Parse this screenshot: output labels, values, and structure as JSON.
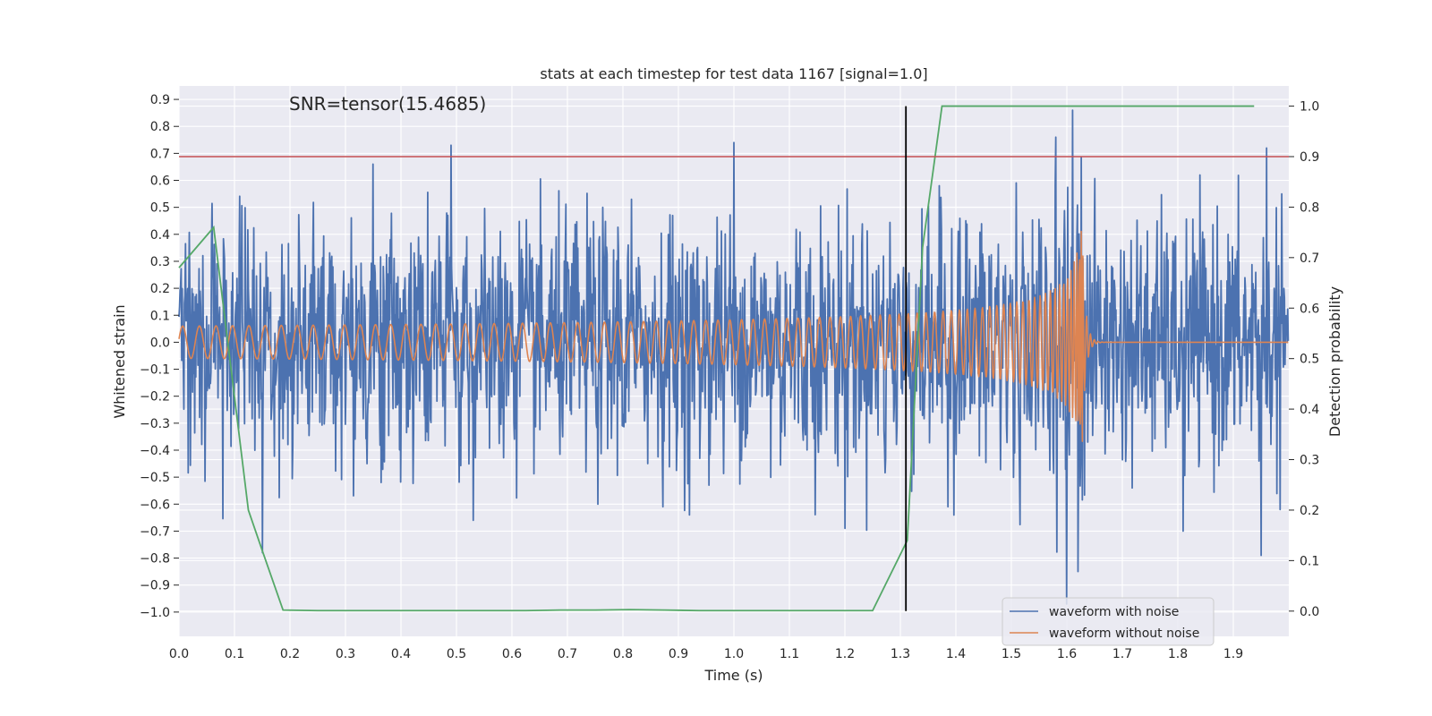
{
  "chart_data": {
    "type": "line",
    "title": "stats at each timestep for test data 1167 [signal=1.0]",
    "xlabel": "Time (s)",
    "ylabel": "Whitened strain",
    "y2label": "Detection probability",
    "annotation": "SNR=tensor(15.4685)",
    "xlim": [
      0.0,
      2.0
    ],
    "ylim": [
      -1.09,
      0.95
    ],
    "y2lim": [
      -0.05,
      1.04
    ],
    "x_ticks": [
      0.0,
      0.1,
      0.2,
      0.3,
      0.4,
      0.5,
      0.6,
      0.7,
      0.8,
      0.9,
      1.0,
      1.1,
      1.2,
      1.3,
      1.4,
      1.5,
      1.6,
      1.7,
      1.8,
      1.9
    ],
    "x_tick_labels": [
      "0.0",
      "0.1",
      "0.2",
      "0.3",
      "0.4",
      "0.5",
      "0.6",
      "0.7",
      "0.8",
      "0.9",
      "1.0",
      "1.1",
      "1.2",
      "1.3",
      "1.4",
      "1.5",
      "1.6",
      "1.7",
      "1.8",
      "1.9"
    ],
    "y_ticks": [
      -1.0,
      -0.9,
      -0.8,
      -0.7,
      -0.6,
      -0.5,
      -0.4,
      -0.3,
      -0.2,
      -0.1,
      0.0,
      0.1,
      0.2,
      0.3,
      0.4,
      0.5,
      0.6,
      0.7,
      0.8,
      0.9
    ],
    "y_tick_labels": [
      "−1.0",
      "−0.9",
      "−0.8",
      "−0.7",
      "−0.6",
      "−0.5",
      "−0.4",
      "−0.3",
      "−0.2",
      "−0.1",
      "0.0",
      "0.1",
      "0.2",
      "0.3",
      "0.4",
      "0.5",
      "0.6",
      "0.7",
      "0.8",
      "0.9"
    ],
    "y2_ticks": [
      0.0,
      0.1,
      0.2,
      0.3,
      0.4,
      0.5,
      0.6,
      0.7,
      0.8,
      0.9,
      1.0
    ],
    "y2_tick_labels": [
      "0.0",
      "0.1",
      "0.2",
      "0.3",
      "0.4",
      "0.5",
      "0.6",
      "0.7",
      "0.8",
      "0.9",
      "1.0"
    ],
    "threshold_probability": 0.9,
    "detection_time": 1.31,
    "merger_time": 1.63,
    "series": [
      {
        "name": "waveform with noise",
        "color": "#4c72b0",
        "axis": "left",
        "noise_std": 0.22,
        "extremes": [
          {
            "x": 0.15,
            "y": -0.78
          },
          {
            "x": 0.49,
            "y": 0.73
          },
          {
            "x": 0.53,
            "y": -0.66
          },
          {
            "x": 1.0,
            "y": 0.74
          },
          {
            "x": 0.92,
            "y": -0.64
          },
          {
            "x": 1.2,
            "y": -0.69
          },
          {
            "x": 1.37,
            "y": 0.58
          },
          {
            "x": 1.58,
            "y": 0.76
          },
          {
            "x": 1.6,
            "y": -0.97
          },
          {
            "x": 1.61,
            "y": 0.86
          },
          {
            "x": 1.62,
            "y": -0.85
          },
          {
            "x": 1.96,
            "y": 0.72
          },
          {
            "x": 1.95,
            "y": -0.79
          },
          {
            "x": 1.81,
            "y": -0.7
          },
          {
            "x": 0.35,
            "y": 0.66
          }
        ]
      },
      {
        "name": "waveform without noise",
        "color": "#dd8452",
        "axis": "left",
        "start_amplitude": 0.06,
        "peak_amplitude": 0.42,
        "start_frequency_hz": 33,
        "chirp_exponent": 0.375
      },
      {
        "name": "detection probability",
        "color": "#55a868",
        "axis": "right",
        "x": [
          0.0,
          0.0625,
          0.125,
          0.15,
          0.1875,
          0.25,
          0.3125,
          0.375,
          0.4375,
          0.5,
          0.5625,
          0.625,
          0.6875,
          0.75,
          0.8125,
          0.875,
          0.9375,
          1.0,
          1.0625,
          1.125,
          1.1875,
          1.25,
          1.3125,
          1.34,
          1.375,
          1.4375,
          1.5,
          1.5625,
          1.625,
          1.6875,
          1.75,
          1.8125,
          1.875,
          1.9375
        ],
        "y": [
          0.68,
          0.76,
          0.2,
          0.12,
          0.002,
          0.001,
          0.001,
          0.001,
          0.001,
          0.001,
          0.001,
          0.001,
          0.002,
          0.002,
          0.003,
          0.002,
          0.001,
          0.001,
          0.001,
          0.001,
          0.001,
          0.001,
          0.14,
          0.72,
          1.0,
          1.0,
          1.0,
          1.0,
          1.0,
          1.0,
          1.0,
          1.0,
          1.0,
          1.0
        ]
      }
    ],
    "threshold_color": "#c44e52",
    "detection_line_color": "#000000",
    "legend": {
      "placement": "lower-right",
      "entries": [
        {
          "label": "waveform with noise",
          "color": "#4c72b0"
        },
        {
          "label": "waveform without noise",
          "color": "#dd8452"
        }
      ]
    },
    "plot_background": "#eaeaf2",
    "grid_color": "#ffffff"
  }
}
